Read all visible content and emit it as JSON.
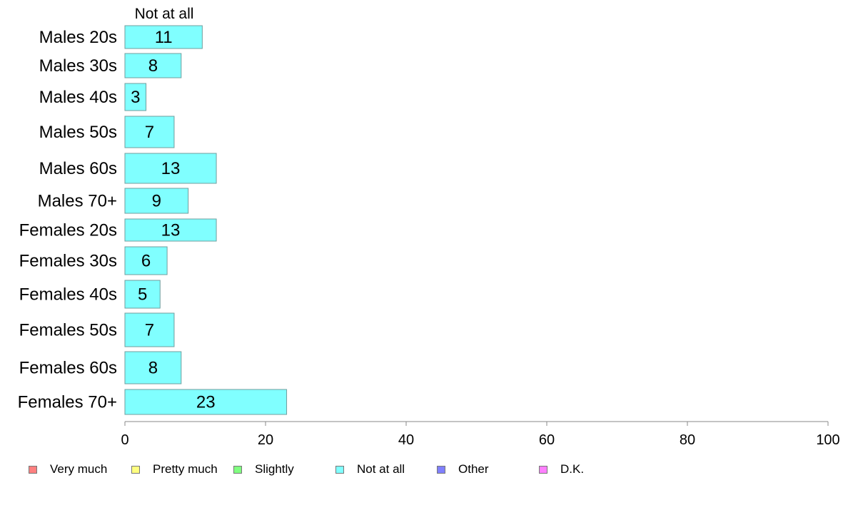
{
  "chart_data": {
    "type": "bar",
    "orientation": "horizontal",
    "series_label_top": "Not at all",
    "categories": [
      "Males 20s",
      "Males 30s",
      "Males 40s",
      "Males 50s",
      "Males 60s",
      "Males 70+",
      "Females 20s",
      "Females 30s",
      "Females 40s",
      "Females 50s",
      "Females 60s",
      "Females 70+"
    ],
    "series": [
      {
        "name": "Not at all",
        "color": "#80ffff",
        "values": [
          11,
          8,
          3,
          7,
          13,
          9,
          13,
          6,
          5,
          7,
          8,
          23
        ]
      }
    ],
    "xlim": [
      0,
      100
    ],
    "xticks": [
      0,
      20,
      40,
      60,
      80,
      100
    ],
    "grid": false,
    "legend_position": "bottom"
  },
  "legend": [
    {
      "label": "Very much",
      "color": "#ff8080"
    },
    {
      "label": "Pretty much",
      "color": "#ffff80"
    },
    {
      "label": "Slightly",
      "color": "#80ff80"
    },
    {
      "label": "Not at all",
      "color": "#80ffff"
    },
    {
      "label": "Other",
      "color": "#8080ff"
    },
    {
      "label": "D.K.",
      "color": "#ff80ff"
    }
  ]
}
